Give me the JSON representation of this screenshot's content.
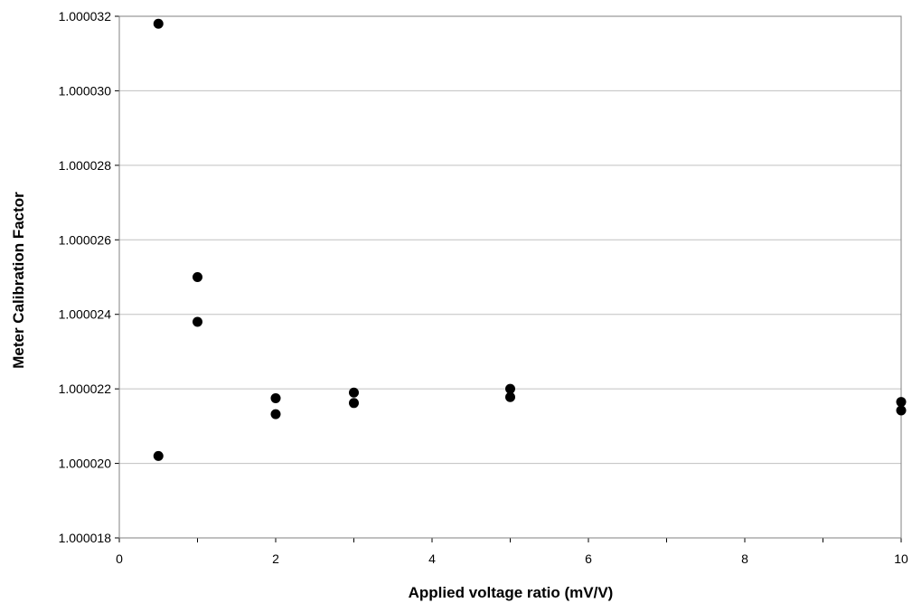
{
  "chart_data": {
    "type": "scatter",
    "title": "",
    "xlabel": "Applied voltage ratio (mV/V)",
    "ylabel": "Meter Calibration Factor",
    "xlim": [
      0,
      10
    ],
    "ylim": [
      1.000018,
      1.000032
    ],
    "x_ticks": [
      0,
      2,
      4,
      6,
      8,
      10
    ],
    "x_tick_labels": [
      "0",
      "2",
      "4",
      "6",
      "8",
      "10"
    ],
    "y_ticks": [
      1.000018,
      1.00002,
      1.000022,
      1.000024,
      1.000026,
      1.000028,
      1.00003,
      1.000032
    ],
    "y_tick_labels": [
      "1.000018",
      "1.000020",
      "1.000022",
      "1.000024",
      "1.000026",
      "1.000028",
      "1.000030",
      "1.000032"
    ],
    "grid": "horizontal",
    "legend": "none",
    "marker_color": "#000000",
    "grid_color": "#c0c0c0",
    "series": [
      {
        "points": [
          {
            "x": 0.5,
            "y": 1.0000318
          },
          {
            "x": 0.5,
            "y": 1.0000202
          },
          {
            "x": 1.0,
            "y": 1.000025
          },
          {
            "x": 1.0,
            "y": 1.0000238
          },
          {
            "x": 2.0,
            "y": 1.00002175
          },
          {
            "x": 2.0,
            "y": 1.00002132
          },
          {
            "x": 3.0,
            "y": 1.0000219
          },
          {
            "x": 3.0,
            "y": 1.00002162
          },
          {
            "x": 5.0,
            "y": 1.000022
          },
          {
            "x": 5.0,
            "y": 1.00002178
          },
          {
            "x": 10.0,
            "y": 1.00002165
          },
          {
            "x": 10.0,
            "y": 1.00002142
          }
        ]
      }
    ]
  }
}
